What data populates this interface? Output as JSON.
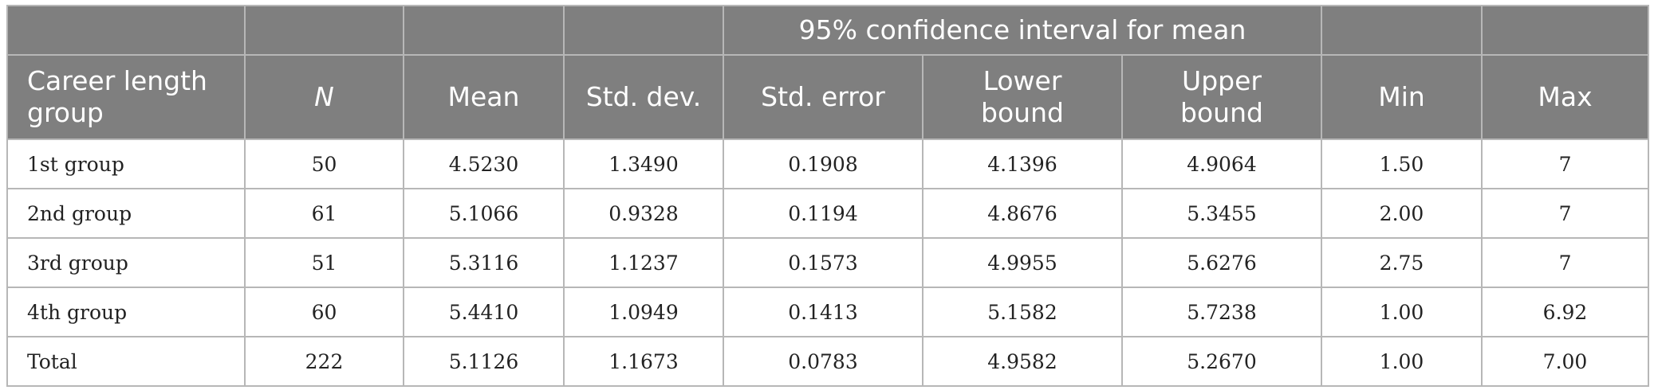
{
  "table": {
    "group_header": "95% confidence interval for mean",
    "columns": [
      "Career length group",
      "N",
      "Mean",
      "Std. dev.",
      "Std. error",
      "Lower bound",
      "Upper bound",
      "Min",
      "Max"
    ],
    "rows": [
      [
        "1st group",
        "50",
        "4.5230",
        "1.3490",
        "0.1908",
        "4.1396",
        "4.9064",
        "1.50",
        "7"
      ],
      [
        "2nd group",
        "61",
        "5.1066",
        "0.9328",
        "0.1194",
        "4.8676",
        "5.3455",
        "2.00",
        "7"
      ],
      [
        "3rd group",
        "51",
        "5.3116",
        "1.1237",
        "0.1573",
        "4.9955",
        "5.6276",
        "2.75",
        "7"
      ],
      [
        "4th group",
        "60",
        "5.4410",
        "1.0949",
        "0.1413",
        "5.1582",
        "5.7238",
        "1.00",
        "6.92"
      ],
      [
        "Total",
        "222",
        "5.1126",
        "1.1673",
        "0.0783",
        "4.9582",
        "5.2670",
        "1.00",
        "7.00"
      ]
    ]
  }
}
